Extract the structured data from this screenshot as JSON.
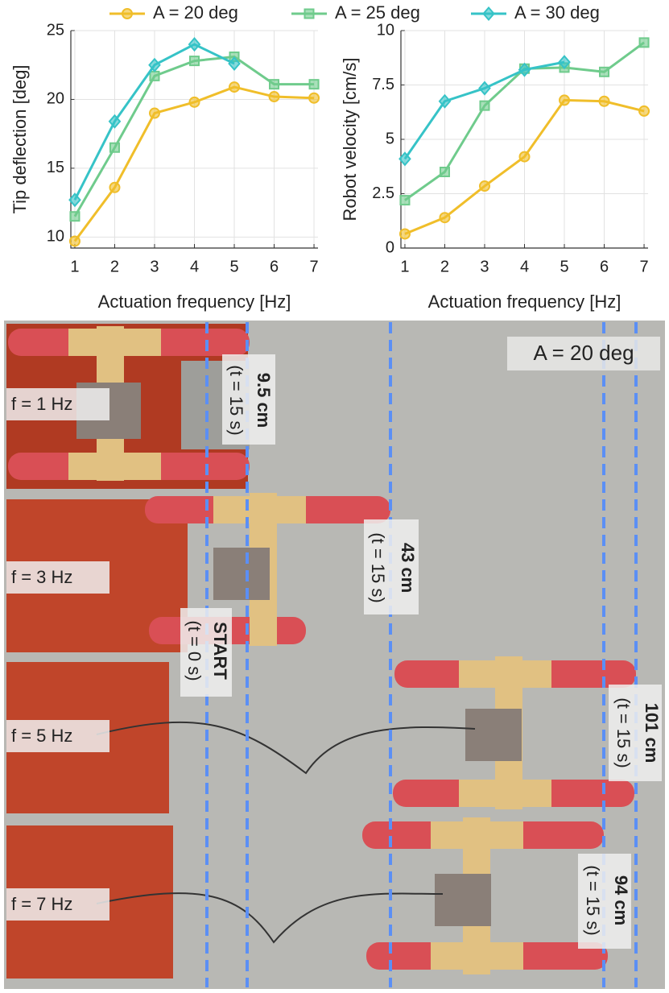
{
  "chart_data": [
    {
      "type": "line",
      "ylabel": "Tip deflection [deg]",
      "xlabel": "Actuation frequency [Hz]",
      "x": [
        1,
        2,
        3,
        4,
        5,
        6,
        7
      ],
      "xlim": [
        0.9,
        7.1
      ],
      "xticks": [
        1,
        2,
        3,
        4,
        5,
        6,
        7
      ],
      "ylim": [
        9.2,
        25
      ],
      "yticks": [
        10,
        15,
        20,
        25
      ],
      "grid": true,
      "series": [
        {
          "name": "A = 20 deg",
          "color": "#f0be2a",
          "marker": "circle",
          "values": [
            9.7,
            13.6,
            19.0,
            19.8,
            20.9,
            20.2,
            20.1
          ]
        },
        {
          "name": "A = 25 deg",
          "color": "#6fcb8c",
          "marker": "square",
          "values": [
            11.5,
            16.5,
            21.7,
            22.8,
            23.1,
            21.1,
            21.1
          ]
        },
        {
          "name": "A = 30 deg",
          "color": "#36c3c7",
          "marker": "diamond",
          "values": [
            12.7,
            18.4,
            22.5,
            24.0,
            22.6,
            null,
            null
          ]
        }
      ]
    },
    {
      "type": "line",
      "ylabel": "Robot velocity [cm/s]",
      "xlabel": "Actuation frequency [Hz]",
      "x": [
        1,
        2,
        3,
        4,
        5,
        6,
        7
      ],
      "xlim": [
        0.9,
        7.1
      ],
      "xticks": [
        1,
        2,
        3,
        4,
        5,
        6,
        7
      ],
      "ylim": [
        0,
        10
      ],
      "yticks": [
        0,
        2.5,
        5,
        7.5,
        10
      ],
      "grid": true,
      "series": [
        {
          "color": "#f0be2a",
          "marker": "circle",
          "values": [
            0.65,
            1.4,
            2.85,
            4.2,
            6.8,
            6.75,
            6.3
          ]
        },
        {
          "color": "#6fcb8c",
          "marker": "square",
          "values": [
            2.2,
            3.5,
            6.55,
            8.25,
            8.3,
            8.1,
            9.45
          ]
        },
        {
          "color": "#36c3c7",
          "marker": "diamond",
          "values": [
            4.1,
            6.75,
            7.35,
            8.2,
            8.55,
            null,
            null
          ]
        }
      ]
    }
  ],
  "photo": {
    "corner_label": "A = 20 deg",
    "rows": [
      {
        "label": "f = 1 Hz",
        "distance": "9.5 cm",
        "time": "(t = 15 s)"
      },
      {
        "label": "f = 3 Hz",
        "distance": "43 cm",
        "time": "(t = 15 s)"
      },
      {
        "label": "f = 5 Hz",
        "distance": "101 cm",
        "time": "(t = 15 s)"
      },
      {
        "label": "f = 7 Hz",
        "distance": "94 cm",
        "time": "(t = 15 s)"
      }
    ],
    "start": {
      "label": "START",
      "time": "(t = 0 s)"
    }
  }
}
